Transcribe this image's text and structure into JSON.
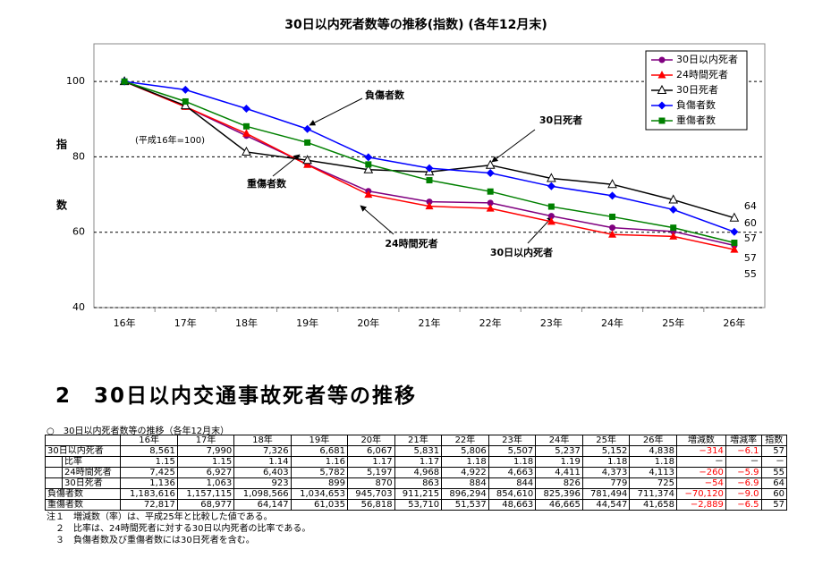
{
  "chart_data": {
    "type": "line",
    "title": "30日以内死者数等の推移(指数) (各年12月末)",
    "y_label": "指数",
    "annotations": [
      "(平成16年=100)",
      "負傷者数",
      "30日死者",
      "重傷者数",
      "24時間死者",
      "30日以内死者"
    ],
    "categories": [
      "16年",
      "17年",
      "18年",
      "19年",
      "20年",
      "21年",
      "22年",
      "23年",
      "24年",
      "25年",
      "26年"
    ],
    "ylim": [
      40,
      110
    ],
    "yticks": [
      40,
      60,
      80,
      100
    ],
    "grid": true,
    "legend": "upper right",
    "series": [
      {
        "name": "30日以内死者",
        "color": "#800080",
        "marker": "circle",
        "values": [
          100,
          93.3,
          85.6,
          78.0,
          70.9,
          68.1,
          67.8,
          64.3,
          61.2,
          60.2,
          56.5
        ],
        "value_labels": [
          null,
          null,
          null,
          null,
          null,
          null,
          null,
          null,
          null,
          null,
          "57"
        ]
      },
      {
        "name": "24時間死者",
        "color": "#ff0000",
        "marker": "triangle",
        "values": [
          100,
          93.3,
          86.2,
          77.9,
          70.0,
          66.9,
          66.3,
          62.8,
          59.4,
          58.9,
          55.4
        ],
        "value_labels": [
          null,
          null,
          null,
          null,
          null,
          null,
          null,
          null,
          null,
          null,
          "55"
        ]
      },
      {
        "name": "30日死者",
        "color": "#000000",
        "marker": "open-triangle",
        "values": [
          100,
          93.6,
          81.3,
          79.1,
          76.6,
          76.0,
          77.8,
          74.3,
          72.7,
          68.6,
          63.8
        ],
        "value_labels": [
          null,
          null,
          null,
          null,
          null,
          null,
          null,
          null,
          null,
          null,
          "64"
        ]
      },
      {
        "name": "負傷者数",
        "color": "#0000ff",
        "marker": "diamond",
        "values": [
          100,
          97.8,
          92.8,
          87.4,
          79.9,
          77.0,
          75.7,
          72.2,
          69.7,
          66.0,
          60.1
        ],
        "value_labels": [
          null,
          null,
          null,
          null,
          null,
          null,
          null,
          null,
          null,
          null,
          "60"
        ]
      },
      {
        "name": "重傷者数",
        "color": "#008000",
        "marker": "square",
        "values": [
          100,
          94.7,
          88.1,
          83.8,
          78.0,
          73.8,
          70.8,
          66.8,
          64.1,
          61.2,
          57.2
        ],
        "value_labels": [
          null,
          null,
          null,
          null,
          null,
          null,
          null,
          null,
          null,
          null,
          "57"
        ]
      }
    ]
  },
  "section_title": "2　30日以内交通事故死者等の推移",
  "table": {
    "caption": "○　30日以内死者数等の推移（各年12月末）",
    "header": [
      "16年",
      "17年",
      "18年",
      "19年",
      "20年",
      "21年",
      "22年",
      "23年",
      "24年",
      "25年",
      "26年",
      "増減数",
      "増減率",
      "指数"
    ],
    "rows": [
      {
        "label": "30日以内死者",
        "cells": [
          "8,561",
          "7,990",
          "7,326",
          "6,681",
          "6,067",
          "5,831",
          "5,806",
          "5,507",
          "5,237",
          "5,152",
          "4,838",
          "−314",
          "−6.1",
          "57"
        ]
      },
      {
        "label": "比率",
        "cells": [
          "1.15",
          "1.15",
          "1.14",
          "1.16",
          "1.17",
          "1.17",
          "1.18",
          "1.18",
          "1.19",
          "1.18",
          "1.18",
          "－",
          "－",
          "－"
        ]
      },
      {
        "label": "24時間死者",
        "cells": [
          "7,425",
          "6,927",
          "6,403",
          "5,782",
          "5,197",
          "4,968",
          "4,922",
          "4,663",
          "4,411",
          "4,373",
          "4,113",
          "−260",
          "−5.9",
          "55"
        ]
      },
      {
        "label": "30日死者",
        "cells": [
          "1,136",
          "1,063",
          "923",
          "899",
          "870",
          "863",
          "884",
          "844",
          "826",
          "779",
          "725",
          "−54",
          "−6.9",
          "64"
        ]
      },
      {
        "label": "負傷者数",
        "cells": [
          "1,183,616",
          "1,157,115",
          "1,098,566",
          "1,034,653",
          "945,703",
          "911,215",
          "896,294",
          "854,610",
          "825,396",
          "781,494",
          "711,374",
          "−70,120",
          "−9.0",
          "60"
        ]
      },
      {
        "label": "重傷者数",
        "cells": [
          "72,817",
          "68,977",
          "64,147",
          "61,035",
          "56,818",
          "53,710",
          "51,537",
          "48,663",
          "46,665",
          "44,547",
          "41,658",
          "−2,889",
          "−6.5",
          "57"
        ]
      }
    ]
  },
  "notes": [
    "注１　増減数（率）は、平成25年と比較した値である。",
    "　２　比率は、24時間死者に対する30日以内死者の比率である。",
    "　３　負傷者数及び重傷者数には30日死者を含む。"
  ]
}
